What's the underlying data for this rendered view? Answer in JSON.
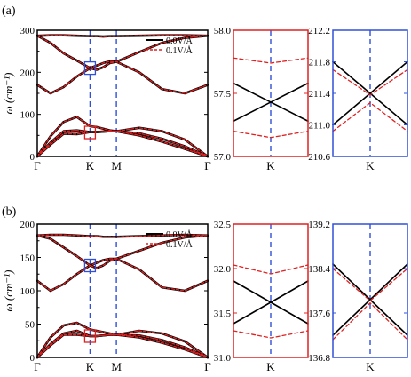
{
  "figure": {
    "panels": [
      {
        "label": "(a)"
      },
      {
        "label": "(b)"
      }
    ]
  },
  "chart_data": [
    {
      "id": "a-main",
      "type": "line",
      "panel": "(a)",
      "ylabel": "ω (cm⁻¹)",
      "ylim": [
        0,
        300
      ],
      "yticks": [
        "0",
        "100",
        "200",
        "300"
      ],
      "xlim": [
        0,
        3.732
      ],
      "xtick_labels": [
        {
          "label": "Γ",
          "x": 0
        },
        {
          "label": "K",
          "x": 1.155
        },
        {
          "label": "M",
          "x": 1.732
        },
        {
          "label": "Γ",
          "x": 3.732
        }
      ],
      "vlines_x": [
        1.155,
        1.732
      ],
      "legend": {
        "position": "top-right",
        "entries": [
          "0.0V/Å",
          "0.1V/Å"
        ]
      },
      "colors": {
        "0.0V/Å": "#000000",
        "0.1V/Å": "#e02020"
      },
      "highlight_boxes": [
        {
          "x": 1.155,
          "y": 210,
          "color": "#3050d8"
        },
        {
          "x": 1.155,
          "y": 57,
          "color": "#e02020"
        }
      ],
      "x": [
        0,
        0.2887,
        0.5774,
        0.866,
        1.155,
        1.3,
        1.444,
        1.588,
        1.732,
        2.232,
        2.732,
        3.232,
        3.732
      ],
      "series": [
        {
          "name": "0.0V/Å",
          "values": [
            0,
            28,
            54,
            53,
            58,
            58,
            59,
            60,
            60,
            50,
            35,
            18,
            0
          ]
        },
        {
          "name": "0.0V/Å",
          "values": [
            0,
            33,
            60,
            62,
            58,
            58,
            59,
            60,
            60,
            55,
            42,
            24,
            0
          ]
        },
        {
          "name": "0.0V/Å",
          "values": [
            0,
            48,
            82,
            94,
            72,
            70,
            66,
            62,
            60,
            68,
            60,
            40,
            0
          ]
        },
        {
          "name": "0.0V/Å",
          "values": [
            170,
            150,
            165,
            190,
            210,
            216,
            222,
            226,
            225,
            200,
            160,
            150,
            170
          ]
        },
        {
          "name": "0.0V/Å",
          "values": [
            287,
            270,
            245,
            228,
            210,
            206,
            212,
            222,
            225,
            248,
            270,
            282,
            287
          ]
        },
        {
          "name": "0.0V/Å",
          "values": [
            287,
            288,
            288,
            287,
            286,
            286,
            285,
            286,
            286,
            287,
            288,
            288,
            287
          ]
        }
      ]
    },
    {
      "id": "a-zoom1",
      "type": "line",
      "panel": "(a)",
      "frame_color": "#e02020",
      "ylim": [
        57.0,
        58.0
      ],
      "yticks": [
        "57.0",
        "57.5",
        "58.0"
      ],
      "xtick_labels": [
        {
          "label": "K",
          "x": 0
        }
      ],
      "xlim": [
        -1,
        1
      ],
      "x": [
        -1,
        0,
        1
      ],
      "series": [
        {
          "name": "0.0V/Å",
          "values": [
            57.28,
            57.43,
            57.58
          ]
        },
        {
          "name": "0.0V/Å",
          "values": [
            57.58,
            57.43,
            57.28
          ]
        },
        {
          "name": "0.1V/Å",
          "values": [
            57.78,
            57.74,
            57.78
          ]
        },
        {
          "name": "0.1V/Å",
          "values": [
            57.2,
            57.15,
            57.2
          ]
        }
      ]
    },
    {
      "id": "a-zoom2",
      "type": "line",
      "panel": "(a)",
      "frame_color": "#3050d8",
      "ylim": [
        210.6,
        212.2
      ],
      "yticks": [
        "210.6",
        "211.0",
        "211.4",
        "211.8",
        "212.2"
      ],
      "xtick_labels": [
        {
          "label": "K",
          "x": 0
        }
      ],
      "xlim": [
        -1,
        1
      ],
      "x": [
        -1,
        0,
        1
      ],
      "series": [
        {
          "name": "0.0V/Å",
          "values": [
            211.0,
            211.4,
            211.8
          ]
        },
        {
          "name": "0.0V/Å",
          "values": [
            211.8,
            211.4,
            211.0
          ]
        },
        {
          "name": "0.1V/Å",
          "values": [
            211.7,
            211.38,
            211.7
          ]
        },
        {
          "name": "0.1V/Å",
          "values": [
            210.92,
            211.28,
            210.92
          ]
        }
      ]
    },
    {
      "id": "b-main",
      "type": "line",
      "panel": "(b)",
      "ylabel": "ω (cm⁻¹)",
      "ylim": [
        0,
        200
      ],
      "yticks": [
        "0",
        "50",
        "100",
        "150",
        "200"
      ],
      "xlim": [
        0,
        3.732
      ],
      "xtick_labels": [
        {
          "label": "Γ",
          "x": 0
        },
        {
          "label": "K",
          "x": 1.155
        },
        {
          "label": "M",
          "x": 1.732
        },
        {
          "label": "Γ",
          "x": 3.732
        }
      ],
      "vlines_x": [
        1.155,
        1.732
      ],
      "legend": {
        "position": "top-right",
        "entries": [
          "0.0V/Å",
          "0.1V/Å"
        ]
      },
      "colors": {
        "0.0V/Å": "#000000",
        "0.1V/Å": "#e02020"
      },
      "highlight_boxes": [
        {
          "x": 1.155,
          "y": 138,
          "color": "#3050d8"
        },
        {
          "x": 1.155,
          "y": 32,
          "color": "#e02020"
        }
      ],
      "x": [
        0,
        0.2887,
        0.5774,
        0.866,
        1.155,
        1.3,
        1.444,
        1.588,
        1.732,
        2.232,
        2.732,
        3.232,
        3.732
      ],
      "series": [
        {
          "name": "0.0V/Å",
          "values": [
            0,
            18,
            34,
            34,
            32,
            32,
            33,
            34,
            34,
            30,
            22,
            12,
            0
          ]
        },
        {
          "name": "0.0V/Å",
          "values": [
            0,
            20,
            36,
            40,
            32,
            32,
            33,
            34,
            34,
            33,
            26,
            15,
            0
          ]
        },
        {
          "name": "0.0V/Å",
          "values": [
            0,
            30,
            48,
            52,
            42,
            40,
            38,
            36,
            34,
            40,
            36,
            24,
            0
          ]
        },
        {
          "name": "0.0V/Å",
          "values": [
            115,
            100,
            110,
            125,
            138,
            142,
            146,
            148,
            148,
            132,
            105,
            100,
            115
          ]
        },
        {
          "name": "0.0V/Å",
          "values": [
            183,
            178,
            165,
            152,
            138,
            134,
            138,
            145,
            148,
            160,
            172,
            180,
            183
          ]
        },
        {
          "name": "0.0V/Å",
          "values": [
            183,
            184,
            184,
            183,
            182,
            182,
            181,
            181,
            181,
            182,
            183,
            184,
            183
          ]
        }
      ]
    },
    {
      "id": "b-zoom1",
      "type": "line",
      "panel": "(b)",
      "frame_color": "#e02020",
      "ylim": [
        31.0,
        32.5
      ],
      "yticks": [
        "31.0",
        "31.5",
        "32.0",
        "32.5"
      ],
      "xtick_labels": [
        {
          "label": "K",
          "x": 0
        }
      ],
      "xlim": [
        -1,
        1
      ],
      "x": [
        -1,
        0,
        1
      ],
      "series": [
        {
          "name": "0.0V/Å",
          "values": [
            31.38,
            31.62,
            31.86
          ]
        },
        {
          "name": "0.0V/Å",
          "values": [
            31.86,
            31.62,
            31.38
          ]
        },
        {
          "name": "0.1V/Å",
          "values": [
            32.04,
            31.94,
            32.04
          ]
        },
        {
          "name": "0.1V/Å",
          "values": [
            31.3,
            31.22,
            31.3
          ]
        }
      ]
    },
    {
      "id": "b-zoom2",
      "type": "line",
      "panel": "(b)",
      "frame_color": "#3050d8",
      "ylim": [
        136.8,
        139.2
      ],
      "yticks": [
        "136.8",
        "137.6",
        "138.4",
        "139.2"
      ],
      "xtick_labels": [
        {
          "label": "K",
          "x": 0
        }
      ],
      "xlim": [
        -1,
        1
      ],
      "x": [
        -1,
        0,
        1
      ],
      "series": [
        {
          "name": "0.0V/Å",
          "values": [
            137.2,
            137.84,
            138.48
          ]
        },
        {
          "name": "0.0V/Å",
          "values": [
            138.48,
            137.84,
            137.2
          ]
        },
        {
          "name": "0.1V/Å",
          "values": [
            138.4,
            137.82,
            138.4
          ]
        },
        {
          "name": "0.1V/Å",
          "values": [
            137.12,
            137.78,
            137.12
          ]
        }
      ]
    }
  ]
}
